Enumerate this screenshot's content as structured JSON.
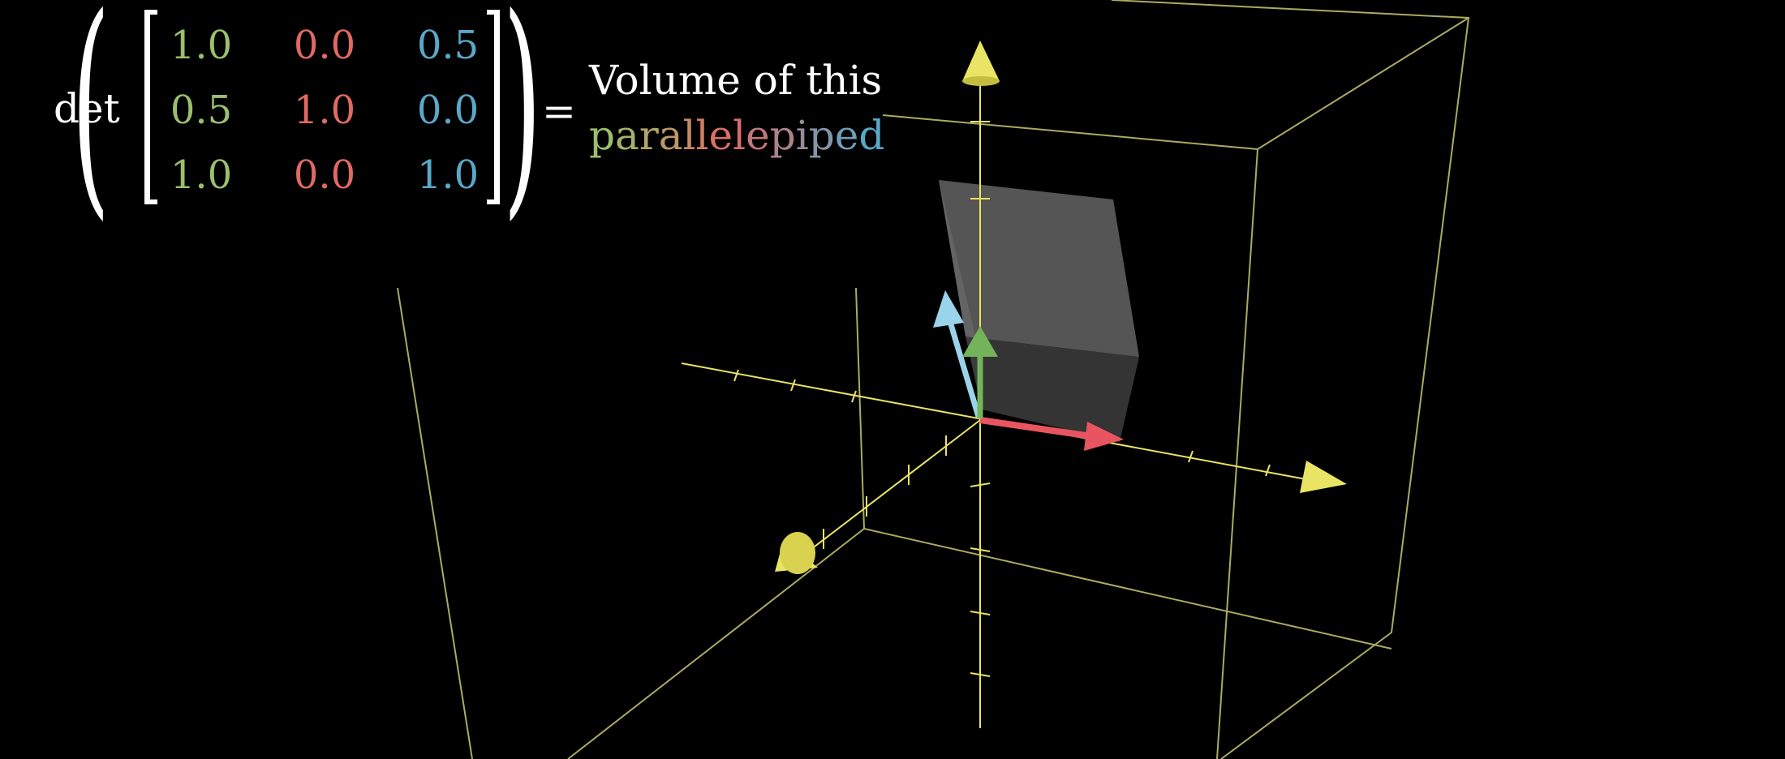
{
  "formula": {
    "det_label": "det",
    "matrix": [
      [
        "1.0",
        "0.0",
        "0.5"
      ],
      [
        "0.5",
        "1.0",
        "0.0"
      ],
      [
        "1.0",
        "0.0",
        "1.0"
      ]
    ],
    "equals": "=",
    "rhs_line1": "Volume of this",
    "rhs_word": "parallelepiped"
  },
  "colors": {
    "background": "#000000",
    "column_1": "#9bbf6e",
    "column_2": "#e06a63",
    "column_3": "#5aa8c8",
    "axes": "#e9e463",
    "box_lines": "#c9c874",
    "solid_face": "#9a9a9a",
    "vector_i": "#e85560",
    "vector_j": "#73b35a",
    "vector_k": "#9ad3ea"
  }
}
